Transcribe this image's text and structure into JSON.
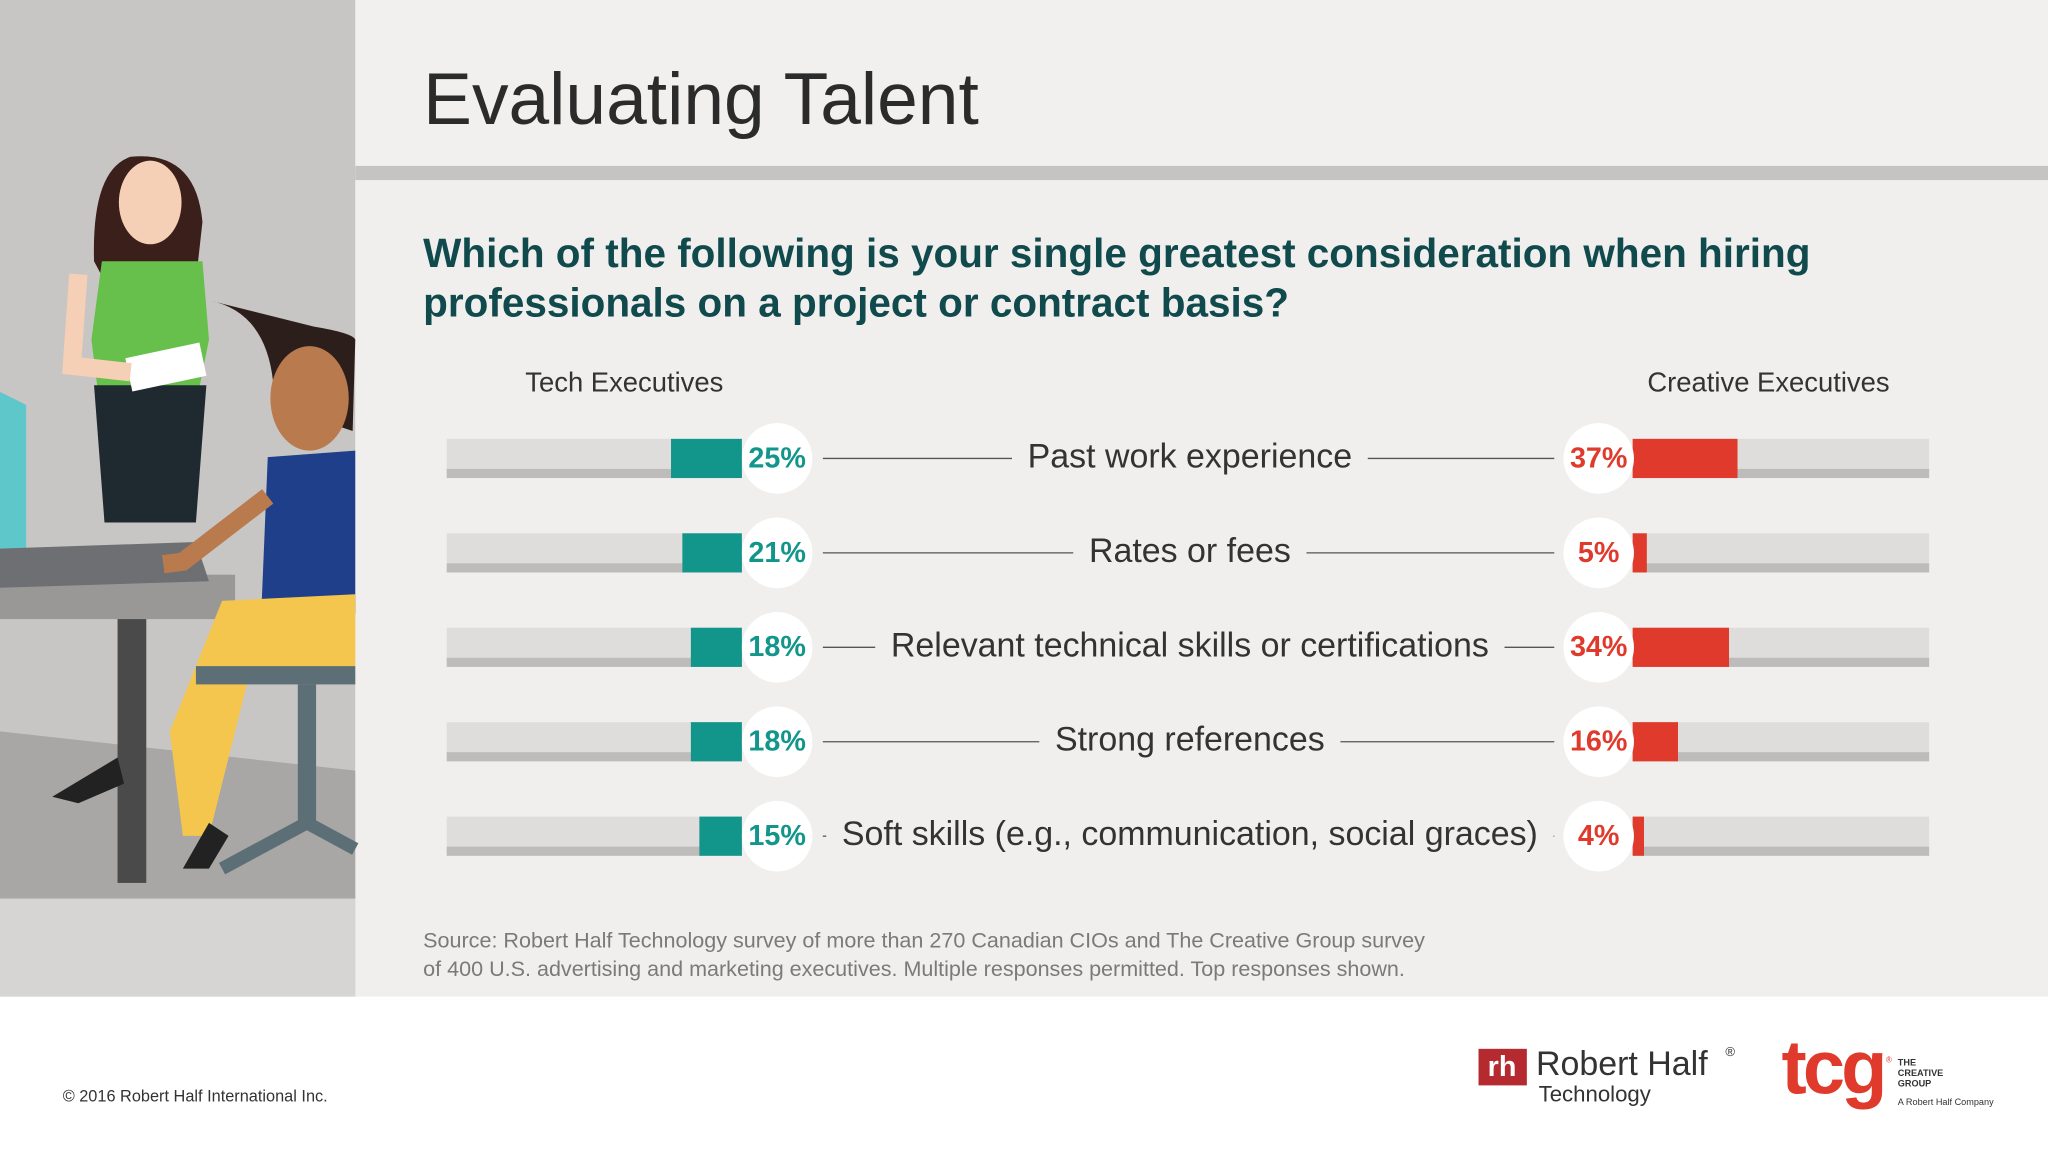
{
  "header": {
    "title": "Evaluating Talent"
  },
  "chart_data": {
    "type": "butterfly-bar",
    "title": "Which of the following is your single greatest consideration when hiring professionals on a project or contract basis?",
    "categories": [
      "Past work experience",
      "Rates or fees",
      "Relevant technical skills or certifications",
      "Strong references",
      "Soft skills (e.g., communication, social graces)"
    ],
    "series": [
      {
        "name": "Tech Executives",
        "color": "#12968b",
        "values": [
          25,
          21,
          18,
          18,
          15
        ],
        "value_labels": [
          "25%",
          "21%",
          "18%",
          "18%",
          "15%"
        ]
      },
      {
        "name": "Creative Executives",
        "color": "#e03a2c",
        "values": [
          37,
          5,
          34,
          16,
          4
        ],
        "value_labels": [
          "37%",
          "5%",
          "34%",
          "16%",
          "4%"
        ]
      }
    ]
  },
  "source": [
    "Source: Robert Half Technology survey of more than 270 Canadian CIOs and The Creative Group survey",
    "of 400 U.S. advertising and marketing executives. Multiple responses permitted. Top responses shown."
  ],
  "footer": {
    "copyright": "© 2016 Robert Half International Inc."
  },
  "logos": {
    "rh_mark": "rh",
    "rh_name": "Robert Half",
    "rh_reg": "®",
    "rh_division": "Technology",
    "tcg_mark": "tcg",
    "tcg_reg": "®",
    "tcg_lines": [
      "THE",
      "CREATIVE",
      "GROUP"
    ],
    "tcg_tagline": "A Robert Half Company"
  }
}
